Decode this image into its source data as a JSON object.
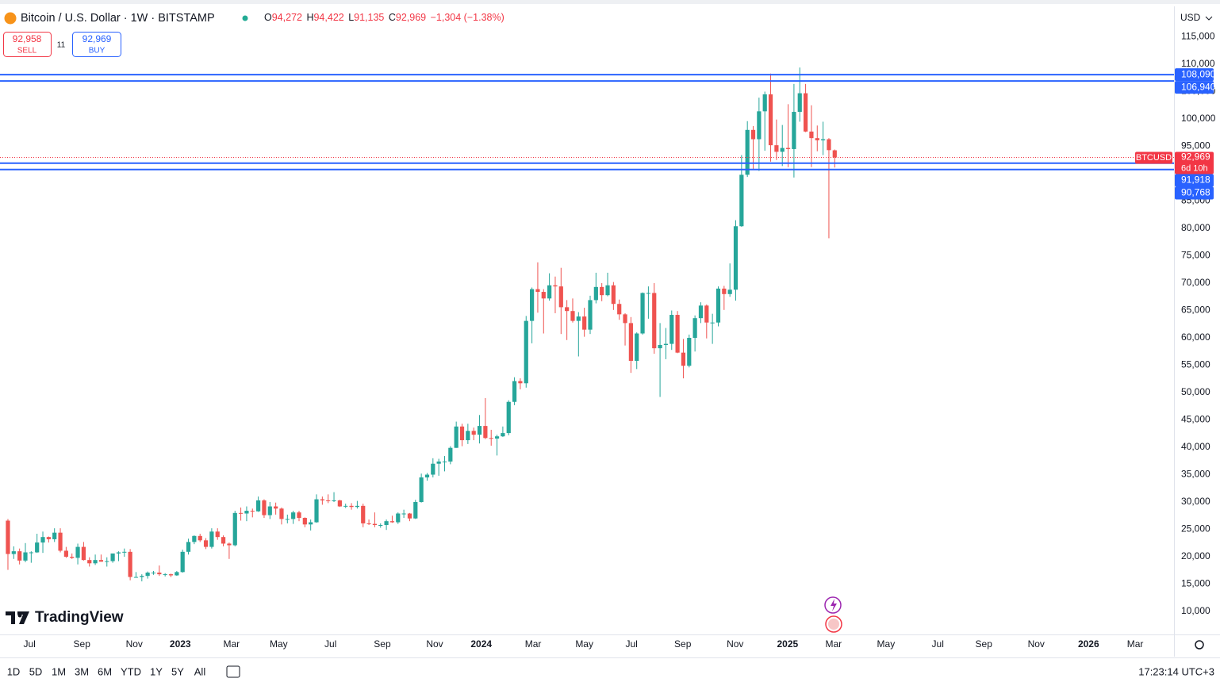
{
  "header": {
    "symbol_title": "Bitcoin / U.S. Dollar · 1W · BITSTAMP",
    "ohlc": [
      {
        "label": "O",
        "value": "94,272"
      },
      {
        "label": "H",
        "value": "94,422"
      },
      {
        "label": "L",
        "value": "91,135"
      },
      {
        "label": "C",
        "value": "92,969"
      }
    ],
    "change": "−1,304 (−1.38%)",
    "sell_price": "92,958",
    "sell_label": "SELL",
    "spread": "11",
    "buy_price": "92,969",
    "buy_label": "BUY",
    "currency": "USD"
  },
  "logo": "TradingView",
  "bottom_bar": {
    "ranges": [
      "1D",
      "5D",
      "1M",
      "3M",
      "6M",
      "YTD",
      "1Y",
      "5Y",
      "All"
    ],
    "clock": "17:23:14 UTC+3"
  },
  "chart_data": {
    "type": "candlestick",
    "series": [
      {
        "name": "BTCUSD",
        "up_color": "#26a69a",
        "down_color": "#ef5350",
        "open": [
          26600,
          20500,
          21000,
          19300,
          20800,
          20800,
          22600,
          23600,
          23200,
          24400,
          21100,
          20000,
          19800,
          21800,
          19400,
          18800,
          19400,
          19100,
          19200,
          20600,
          20800,
          20900,
          16300,
          16300,
          16500,
          17100,
          17100,
          16800,
          16800,
          16600,
          17200,
          20900,
          22700,
          23800,
          23000,
          21800,
          24600,
          23600,
          22400,
          22100,
          28000,
          27900,
          28400,
          28300,
          30300,
          27600,
          29200,
          28800,
          26900,
          26900,
          28100,
          27100,
          25900,
          26300,
          30500,
          30300,
          30200,
          30300,
          29200,
          29300,
          29100,
          29300,
          26100,
          26000,
          25800,
          25800,
          26500,
          26300,
          27900,
          27900,
          27000,
          30000,
          34500,
          35000,
          37000,
          37400,
          37400,
          39900,
          43800,
          41300,
          43000,
          42300,
          43900,
          41700,
          41600,
          42000,
          42600,
          48300,
          52100,
          51700,
          63100,
          68900,
          68400,
          67200,
          69600,
          69400,
          65600,
          64900,
          63100,
          63900,
          61500,
          66900,
          69300,
          67800,
          69600,
          66200,
          64300,
          62700,
          55800,
          60800,
          68200,
          68200,
          58100,
          58700,
          58900,
          64200,
          57300,
          54900,
          60000,
          63600,
          65900,
          62800,
          62800,
          69000,
          68000,
          68800,
          80400,
          89800,
          98000,
          96300,
          101400,
          104500,
          95200,
          94000,
          94700,
          94500,
          101300,
          104700,
          97700,
          96500,
          96100,
          96300,
          94272
        ],
        "high": [
          26900,
          21900,
          21500,
          22500,
          21000,
          24200,
          24600,
          23700,
          25200,
          25200,
          21800,
          20600,
          22400,
          22700,
          19900,
          20400,
          20400,
          19900,
          19700,
          21000,
          21500,
          21400,
          17200,
          16800,
          17300,
          17400,
          18400,
          17000,
          16900,
          17400,
          21300,
          23300,
          23900,
          24200,
          23400,
          25200,
          25200,
          23900,
          22600,
          28400,
          29000,
          29200,
          28800,
          31000,
          30500,
          30000,
          29900,
          29000,
          27700,
          28400,
          28400,
          27200,
          26800,
          31400,
          31000,
          31400,
          31800,
          30400,
          29700,
          29800,
          30200,
          29700,
          26800,
          28100,
          26100,
          26800,
          27500,
          28100,
          28600,
          28000,
          30400,
          35200,
          35300,
          38000,
          37900,
          38400,
          40200,
          44700,
          44300,
          44300,
          43600,
          45900,
          49000,
          43200,
          42300,
          43800,
          48600,
          52800,
          52600,
          64000,
          69200,
          73800,
          68900,
          71800,
          71200,
          72800,
          66900,
          67200,
          64700,
          65500,
          67700,
          71900,
          70000,
          71900,
          70200,
          67000,
          64500,
          63800,
          61000,
          68300,
          69400,
          70000,
          62700,
          61800,
          65000,
          64900,
          59800,
          60600,
          64100,
          66500,
          66100,
          64400,
          69400,
          69500,
          73600,
          81500,
          93400,
          99600,
          98700,
          103900,
          105000,
          108300,
          99900,
          98900,
          102700,
          106400,
          109400,
          106400,
          102500,
          98800,
          99500,
          96500,
          94422
        ],
        "low": [
          17600,
          19600,
          18600,
          19000,
          18900,
          20700,
          20700,
          22600,
          22700,
          20800,
          19800,
          19600,
          18600,
          19300,
          18200,
          18500,
          19100,
          18200,
          18900,
          19200,
          20000,
          15700,
          16200,
          15500,
          16000,
          16700,
          16500,
          16400,
          16300,
          16500,
          17100,
          20400,
          22300,
          22700,
          21400,
          21500,
          23100,
          21900,
          19600,
          21900,
          26600,
          26500,
          27200,
          28200,
          27100,
          26900,
          27700,
          25900,
          26100,
          26000,
          26500,
          25400,
          24800,
          26200,
          29500,
          29800,
          30000,
          29100,
          28900,
          28600,
          28800,
          25400,
          25800,
          25400,
          25300,
          24900,
          26200,
          26000,
          27100,
          26500,
          26900,
          29900,
          33900,
          34500,
          34800,
          35600,
          36900,
          39900,
          40200,
          40600,
          41300,
          40700,
          41500,
          40300,
          38500,
          41900,
          42200,
          47700,
          50600,
          50900,
          59000,
          64600,
          60800,
          66800,
          64500,
          60700,
          59600,
          62800,
          56600,
          60200,
          60700,
          66300,
          66700,
          67600,
          65100,
          63300,
          58600,
          53600,
          54300,
          60600,
          63500,
          57100,
          49200,
          56100,
          57800,
          57200,
          52600,
          54600,
          57500,
          62700,
          59900,
          58900,
          62100,
          65100,
          67500,
          66800,
          80300,
          89400,
          90800,
          90500,
          94200,
          92200,
          92500,
          91400,
          91200,
          89300,
          99500,
          97600,
          91200,
          94100,
          93400,
          78200,
          91135
        ],
        "close": [
          20500,
          21000,
          19300,
          20800,
          20800,
          22600,
          23600,
          23200,
          24400,
          21100,
          20000,
          19800,
          21800,
          19400,
          18800,
          19400,
          19100,
          19200,
          20600,
          20800,
          20900,
          16300,
          16300,
          16500,
          17100,
          17100,
          16800,
          16800,
          16600,
          17200,
          20900,
          22700,
          23800,
          23000,
          21800,
          24600,
          23600,
          22400,
          22100,
          28000,
          27900,
          28400,
          28300,
          30300,
          27600,
          29200,
          28800,
          26900,
          26900,
          28100,
          27100,
          25900,
          26300,
          30500,
          30300,
          30200,
          30300,
          29200,
          29300,
          29100,
          29300,
          26100,
          26000,
          25800,
          25800,
          26500,
          26300,
          27900,
          27900,
          27000,
          30000,
          34500,
          35000,
          37000,
          37400,
          37400,
          39900,
          43800,
          41300,
          43000,
          42300,
          43900,
          41700,
          41600,
          42000,
          42600,
          48300,
          52100,
          51700,
          63100,
          68900,
          68400,
          67200,
          69600,
          69400,
          65600,
          64900,
          63100,
          63900,
          61500,
          66900,
          69300,
          67800,
          69600,
          66200,
          64300,
          62700,
          55800,
          60800,
          68200,
          68200,
          58100,
          58700,
          58900,
          64200,
          57300,
          54900,
          60000,
          63600,
          65900,
          62800,
          62800,
          69000,
          68000,
          68800,
          80400,
          89800,
          98000,
          96300,
          101400,
          104500,
          95200,
          94000,
          94700,
          94500,
          101300,
          104700,
          97700,
          96500,
          96100,
          96300,
          94300,
          92969
        ]
      }
    ],
    "xlim": [
      -1.36,
      200.27
    ],
    "xticks": [
      {
        "value": 3.7,
        "label": "Jul"
      },
      {
        "value": 12.7,
        "label": "Sep"
      },
      {
        "value": 21.7,
        "label": "Nov"
      },
      {
        "value": 29.6,
        "label": "2023"
      },
      {
        "value": 38.4,
        "label": "Mar"
      },
      {
        "value": 46.5,
        "label": "May"
      },
      {
        "value": 55.4,
        "label": "Jul"
      },
      {
        "value": 64.3,
        "label": "Sep"
      },
      {
        "value": 73.3,
        "label": "Nov"
      },
      {
        "value": 81.3,
        "label": "2024"
      },
      {
        "value": 90.2,
        "label": "Mar"
      },
      {
        "value": 99.0,
        "label": "May"
      },
      {
        "value": 107.1,
        "label": "Jul"
      },
      {
        "value": 115.9,
        "label": "Sep"
      },
      {
        "value": 124.9,
        "label": "Nov"
      },
      {
        "value": 133.9,
        "label": "2025"
      },
      {
        "value": 141.8,
        "label": "Mar"
      },
      {
        "value": 150.8,
        "label": "May"
      },
      {
        "value": 159.7,
        "label": "Jul"
      },
      {
        "value": 167.6,
        "label": "Sep"
      },
      {
        "value": 176.6,
        "label": "Nov"
      },
      {
        "value": 185.6,
        "label": "2026"
      },
      {
        "value": 193.6,
        "label": "Mar"
      }
    ],
    "ylim": [
      5800,
      120580
    ],
    "yticks": [
      {
        "value": 10000,
        "label": "10,000"
      },
      {
        "value": 15000,
        "label": "15,000"
      },
      {
        "value": 20000,
        "label": "20,000"
      },
      {
        "value": 25000,
        "label": "25,000"
      },
      {
        "value": 30000,
        "label": "30,000"
      },
      {
        "value": 35000,
        "label": "35,000"
      },
      {
        "value": 40000,
        "label": "40,000"
      },
      {
        "value": 45000,
        "label": "45,000"
      },
      {
        "value": 50000,
        "label": "50,000"
      },
      {
        "value": 55000,
        "label": "55,000"
      },
      {
        "value": 60000,
        "label": "60,000"
      },
      {
        "value": 65000,
        "label": "65,000"
      },
      {
        "value": 70000,
        "label": "70,000"
      },
      {
        "value": 75000,
        "label": "75,000"
      },
      {
        "value": 80000,
        "label": "80,000"
      },
      {
        "value": 85000,
        "label": "85,000"
      },
      {
        "value": 90000,
        "label": "90,000"
      },
      {
        "value": 95000,
        "label": "95,000"
      },
      {
        "value": 100000,
        "label": "100,000"
      },
      {
        "value": 105000,
        "label": "105,000"
      },
      {
        "value": 110000,
        "label": "110,000"
      },
      {
        "value": 115000,
        "label": "115,000"
      }
    ],
    "grid": true,
    "hline_color": "#2962ff",
    "hlines": [
      {
        "value": 108090,
        "label": "108,090"
      },
      {
        "value": 106940,
        "label": "106,940"
      },
      {
        "value": 91918,
        "label": "91,918"
      },
      {
        "value": 90768,
        "label": "90,768"
      }
    ],
    "last_price": {
      "value": 92969,
      "label": "92,969",
      "countdown": "6d 10h",
      "color": "#f23645"
    }
  }
}
